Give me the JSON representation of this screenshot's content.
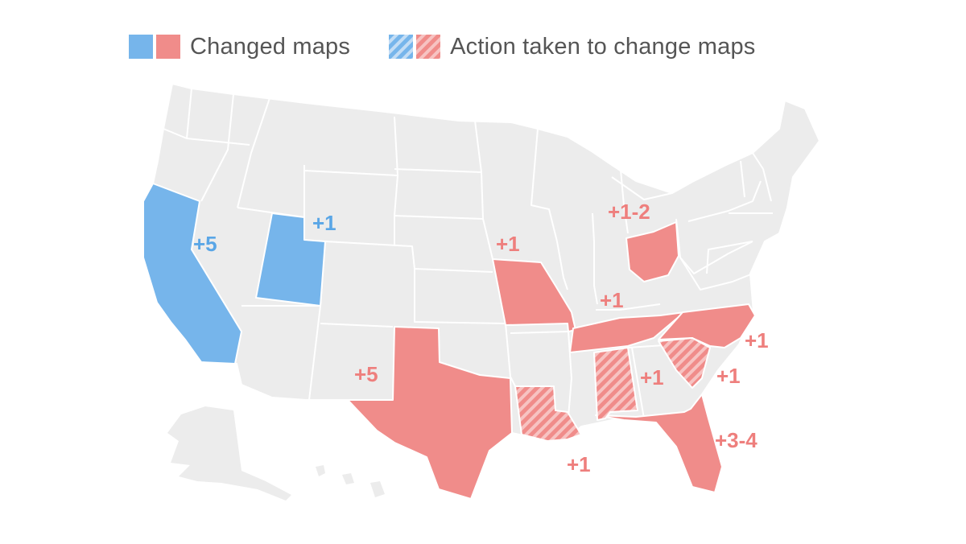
{
  "colors": {
    "democrat": "#76b5eb",
    "republican": "#f08c8a",
    "neutral": "#ececec",
    "label_democrat": "#5aa6e6",
    "label_republican": "#ee7f7d"
  },
  "legend": {
    "changed_label": "Changed maps",
    "action_label": "Action taken to change maps"
  },
  "states": {
    "CA": {
      "name": "California",
      "status": "changed",
      "party": "democrat",
      "label": "+5"
    },
    "UT": {
      "name": "Utah",
      "status": "changed",
      "party": "democrat",
      "label": "+1"
    },
    "TX": {
      "name": "Texas",
      "status": "changed",
      "party": "republican",
      "label": "+5"
    },
    "MO": {
      "name": "Missouri",
      "status": "changed",
      "party": "republican",
      "label": "+1"
    },
    "OH": {
      "name": "Ohio",
      "status": "changed",
      "party": "republican",
      "label": "+1-2"
    },
    "TN": {
      "name": "Tennessee",
      "status": "changed",
      "party": "republican",
      "label": "+1"
    },
    "NC": {
      "name": "North Carolina",
      "status": "changed",
      "party": "republican",
      "label": "+1"
    },
    "FL": {
      "name": "Florida",
      "status": "changed",
      "party": "republican",
      "label": "+3-4"
    },
    "LA": {
      "name": "Louisiana",
      "status": "action",
      "party": "republican",
      "label": "+1"
    },
    "AL": {
      "name": "Alabama",
      "status": "action",
      "party": "republican",
      "label": "+1"
    },
    "SC": {
      "name": "South Carolina",
      "status": "action",
      "party": "republican",
      "label": "+1"
    }
  }
}
